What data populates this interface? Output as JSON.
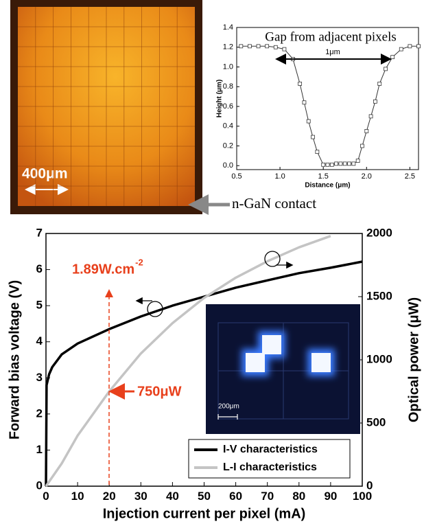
{
  "micrograph": {
    "scale_label": "400μm",
    "contact_label": "n-GaN contact"
  },
  "inset": {
    "scale_label": "200μm"
  },
  "chart_data": [
    {
      "type": "line",
      "title": "Gap from adjacent pixels",
      "annotation": "1μm",
      "x_label": "Distance (μm)",
      "y_label": "Height (μm)",
      "xlim": [
        0.5,
        2.6
      ],
      "xticks": [
        0.5,
        {
          "value": 1,
          "label": "1.0"
        },
        1.5,
        {
          "value": 2,
          "label": "2.0"
        },
        2.5
      ],
      "ylim": [
        -0.04,
        1.4
      ],
      "yticks": [
        {
          "value": 0,
          "label": "0.0"
        },
        0.2,
        0.4,
        0.6,
        0.8,
        {
          "value": 1,
          "label": "1.0"
        },
        1.2,
        1.4
      ],
      "marker": "square",
      "series": [
        {
          "color": "#333333",
          "x": [
            0.55,
            0.65,
            0.75,
            0.85,
            0.95,
            1.05,
            1.15,
            1.23,
            1.28,
            1.33,
            1.38,
            1.43,
            1.5,
            1.55,
            1.6,
            1.65,
            1.7,
            1.75,
            1.8,
            1.85,
            1.9,
            1.95,
            2.0,
            2.05,
            2.1,
            2.15,
            2.22,
            2.3,
            2.4,
            2.5,
            2.6
          ],
          "values": [
            1.21,
            1.21,
            1.21,
            1.21,
            1.2,
            1.18,
            1.08,
            0.83,
            0.64,
            0.45,
            0.29,
            0.14,
            0.01,
            0.01,
            0.01,
            0.02,
            0.02,
            0.02,
            0.02,
            0.02,
            0.05,
            0.2,
            0.35,
            0.5,
            0.65,
            0.83,
            0.98,
            1.1,
            1.18,
            1.21,
            1.21
          ]
        }
      ]
    },
    {
      "type": "line",
      "x_label": "Injection current per pixel (mA)",
      "y_label": "Forward bias voltage (V)",
      "y2_label": "Optical power (μW)",
      "xlim": [
        0,
        100
      ],
      "xticks": [
        0,
        10,
        20,
        30,
        40,
        50,
        60,
        70,
        80,
        90,
        100
      ],
      "ylim": [
        0,
        7
      ],
      "yticks": [
        0,
        1,
        2,
        3,
        4,
        5,
        6,
        7
      ],
      "y2lim": [
        0,
        2000
      ],
      "y2ticks": [
        0,
        500,
        1000,
        1500,
        2000
      ],
      "legend": "lower right",
      "annotations": [
        {
          "text": "1.89W.cm",
          "superscript": "-2",
          "color": "#e8401c"
        },
        {
          "text": "750μW",
          "color": "#e8401c"
        }
      ],
      "series": [
        {
          "name": "I-V characteristics",
          "color": "#000000",
          "x": [
            0,
            0.2,
            1,
            2,
            5,
            10,
            20,
            30,
            40,
            50,
            60,
            70,
            80,
            90,
            100
          ],
          "values": [
            0,
            2.8,
            3.1,
            3.3,
            3.65,
            3.95,
            4.35,
            4.7,
            5.0,
            5.25,
            5.5,
            5.7,
            5.9,
            6.05,
            6.22
          ]
        },
        {
          "name": "L-I characteristics",
          "color": "#c4c4c4",
          "axis": "y2",
          "x": [
            0,
            5,
            10,
            20,
            30,
            40,
            50,
            60,
            70,
            80,
            90
          ],
          "values": [
            0,
            180,
            400,
            750,
            1050,
            1290,
            1490,
            1650,
            1780,
            1890,
            1980
          ]
        }
      ]
    }
  ]
}
